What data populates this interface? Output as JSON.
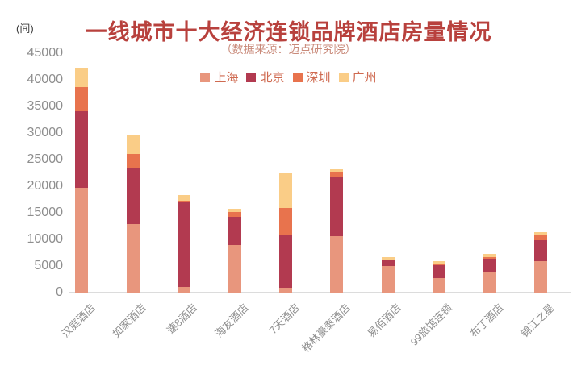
{
  "unit_label": "(间)",
  "title": "一线城市十大经济连锁品牌酒店房量情况",
  "subtitle": "（数据来源：迈点研究院）",
  "colors": {
    "title_text": "#b8413d",
    "subtitle_text": "#c98a7a",
    "legend_text": "#cf6a50",
    "axis_text": "#8e8e8e",
    "axis_line": "#dcdcdc",
    "unit_text": "#3d3d3d"
  },
  "chart_data": {
    "type": "bar",
    "stacked": true,
    "title": "一线城市十大经济连锁品牌酒店房量情况",
    "subtitle": "（数据来源：迈点研究院）",
    "unit": "间",
    "xlabel": "",
    "ylabel": "(间)",
    "ylim": [
      0,
      45000
    ],
    "ytick_step": 5000,
    "grid": false,
    "legend_position": "top-center",
    "x_label_rotation": 45,
    "categories": [
      "汉庭酒店",
      "如家酒店",
      "速8酒店",
      "海友酒店",
      "7天酒店",
      "格林豪泰酒店",
      "易佰酒店",
      "99旅馆连锁",
      "布丁酒店",
      "锦江之星"
    ],
    "series": [
      {
        "name": "上海",
        "color": "#e8967d",
        "values": [
          19700,
          12800,
          1100,
          8900,
          900,
          10600,
          5000,
          2700,
          4000,
          5900
        ]
      },
      {
        "name": "北京",
        "color": "#b23a50",
        "values": [
          14400,
          10700,
          15900,
          5300,
          9900,
          11200,
          1100,
          2400,
          2300,
          4000
        ]
      },
      {
        "name": "深圳",
        "color": "#e8734d",
        "values": [
          4600,
          2500,
          100,
          900,
          5100,
          900,
          150,
          300,
          300,
          800
        ]
      },
      {
        "name": "广州",
        "color": "#facd87",
        "values": [
          3500,
          3600,
          1200,
          600,
          6600,
          500,
          450,
          450,
          700,
          600
        ]
      }
    ]
  }
}
